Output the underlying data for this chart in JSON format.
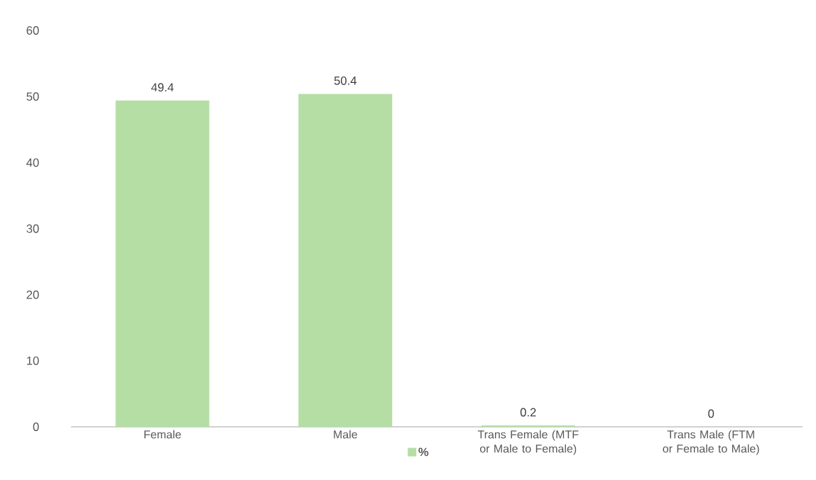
{
  "chart_data": {
    "type": "bar",
    "categories": [
      "Female",
      "Male",
      "Trans Female (MTF or Male to Female)",
      "Trans Male (FTM or Female to Male)"
    ],
    "series": [
      {
        "name": "%",
        "color": "#b5dea5",
        "values": [
          49.4,
          50.4,
          0.2,
          0
        ]
      }
    ],
    "ylim": [
      0,
      60
    ],
    "yticks": [
      0,
      10,
      20,
      30,
      40,
      50,
      60
    ],
    "grid": false,
    "legend": "bottom",
    "data_labels": true
  }
}
